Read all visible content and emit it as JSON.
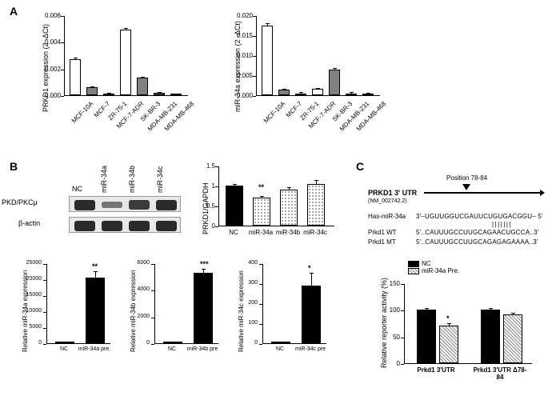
{
  "panelA": {
    "label": "A",
    "chart1": {
      "ylabel": "PRKD1 expression (2 -ΔCt)",
      "ymax": 0.006,
      "ytick_step": 0.002,
      "categories": [
        "MCF-10A",
        "MCF-7",
        "ZR-75-1",
        "MCF-7-ADR",
        "SK-BR-3",
        "MDA-MB-231",
        "MDA-MB-468"
      ],
      "values": [
        0.0027,
        0.0006,
        0.0001,
        0.0049,
        0.0013,
        0.0002,
        5e-05
      ],
      "colors": [
        "#ffffff",
        "#808080",
        "#505050",
        "#ffffff",
        "#808080",
        "#505050",
        "#ffffff"
      ],
      "err": [
        5e-05,
        2e-05,
        1e-05,
        8e-05,
        3e-05,
        1e-05,
        1e-05
      ]
    },
    "chart2": {
      "ylabel": "miR-34a expression (2 -ΔCt)",
      "ymax": 0.02,
      "ytick_step": 0.005,
      "categories": [
        "MCF-10A",
        "MCF-7",
        "ZR-75-1",
        "MCF-7-ADR",
        "SK-BR-3",
        "MDA-MB-231",
        "MDA-MB-468"
      ],
      "values": [
        0.0175,
        0.0014,
        0.0005,
        0.0016,
        0.0064,
        0.0005,
        0.0003
      ],
      "colors": [
        "#ffffff",
        "#808080",
        "#505050",
        "#ffffff",
        "#808080",
        "#505050",
        "#ffffff"
      ],
      "err": [
        0.0003,
        5e-05,
        2e-05,
        5e-05,
        0.0002,
        2e-05,
        2e-05
      ]
    }
  },
  "panelB": {
    "label": "B",
    "blot_lanes": [
      "NC",
      "miR-34a",
      "miR-34b",
      "miR-34c"
    ],
    "blot_row1_label": "PKD/PKCμ",
    "blot_row2_label": "β-actin",
    "blot_row1_intensity": [
      1.0,
      0.35,
      0.85,
      1.0
    ],
    "blot_row2_intensity": [
      1.0,
      1.0,
      1.0,
      1.0
    ],
    "quant": {
      "ylabel": "PRKD1/GAPDH",
      "ymax": 1.5,
      "ytick_step": 0.5,
      "categories": [
        "NC",
        "miR-34a",
        "miR-34b",
        "miR-34c"
      ],
      "values": [
        1.0,
        0.7,
        0.9,
        1.05
      ],
      "err": [
        0.03,
        0.03,
        0.05,
        0.07
      ],
      "sig": [
        "",
        "**",
        "",
        ""
      ],
      "fills": [
        "white",
        "dots",
        "dots",
        "dots"
      ]
    },
    "small1": {
      "ylabel": "Relative miR-34a expression",
      "ymax": 25000,
      "ytick_step": 5000,
      "categories": [
        "NC",
        "miR-34a pre."
      ],
      "values": [
        50,
        20500
      ],
      "err": [
        20,
        1700
      ],
      "sig": [
        "",
        "**"
      ]
    },
    "small2": {
      "ylabel": "Relative miR-34b expression",
      "ymax": 6000,
      "ytick_step": 2000,
      "categories": [
        "NC",
        "miR-34b pre"
      ],
      "values": [
        10,
        5300
      ],
      "err": [
        5,
        200
      ],
      "sig": [
        "",
        "***"
      ]
    },
    "small3": {
      "ylabel": "Relative miR-34c expression",
      "ymax": 400,
      "ytick_step": 100,
      "categories": [
        "NC",
        "miR-34c pre"
      ],
      "values": [
        2,
        290
      ],
      "err": [
        1,
        60
      ],
      "sig": [
        "",
        "*"
      ]
    }
  },
  "panelC": {
    "label": "C",
    "arrow_label": "PRKD1 3' UTR",
    "arrow_sub": "(NM_002742.2)",
    "position_label": "Position 78-84",
    "seq_label1": "Has-miR-34a",
    "seq1": "3'–UGUUGGUCGAUUCUGUGACGGU– 5'",
    "seq_label2": "Prkd1 WT",
    "seq2": "5'..CAUUUGCCUUGCAGAACUGCCA..3'",
    "seq_label3": "Prkd1 MT",
    "seq3": "5'..CAUUUGCCUUGCAGAGAGAAAA..3'",
    "bars_between": "|||||||",
    "reporter": {
      "ylabel": "Relative reporter activity (%)",
      "ymax": 150,
      "ytick_step": 50,
      "groups": [
        "Prkd1 3'UTR",
        "Prkd1 3'UTR Δ78-84"
      ],
      "series": [
        "NC",
        "miR-34a Pre."
      ],
      "values": [
        [
          100,
          71
        ],
        [
          100,
          91
        ]
      ],
      "err": [
        [
          2,
          2
        ],
        [
          2,
          2
        ]
      ],
      "sig": [
        [
          "",
          "*"
        ],
        [
          "",
          ""
        ]
      ],
      "colors": [
        "#000000",
        "hatch"
      ]
    }
  }
}
